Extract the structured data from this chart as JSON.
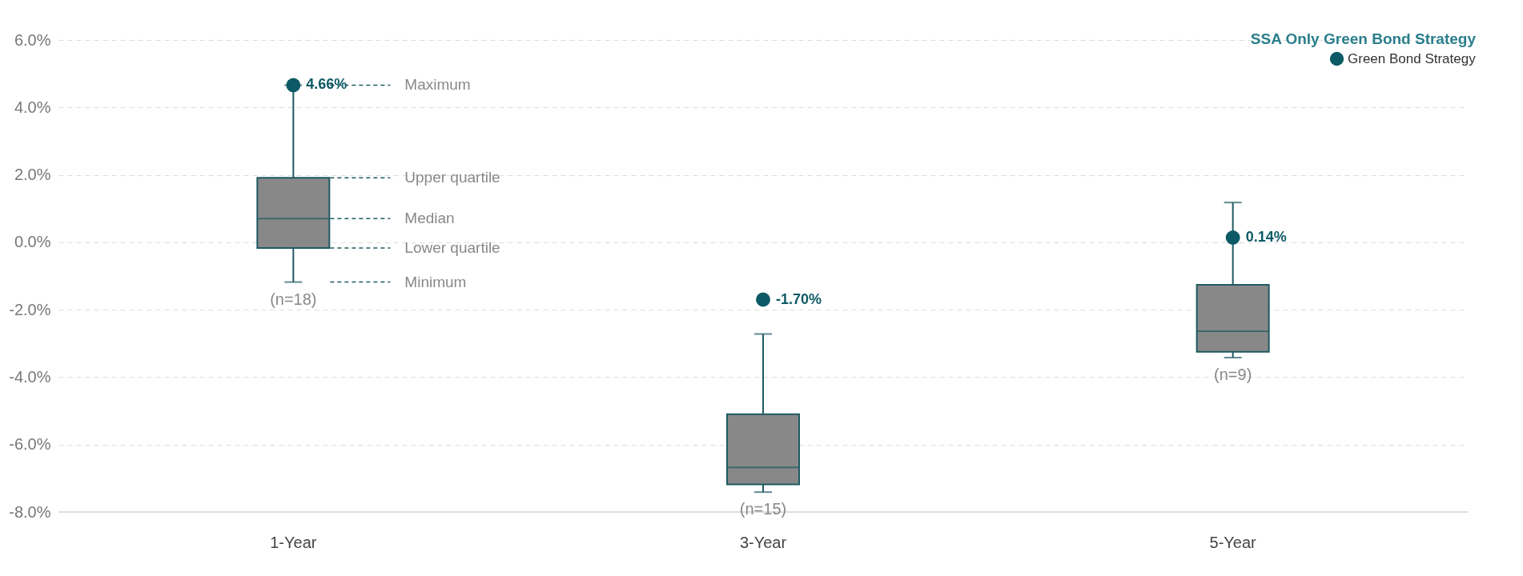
{
  "chart_data": {
    "type": "box",
    "legend_title": "SSA Only Green Bond Strategy",
    "categories": [
      "1-Year",
      "3-Year",
      "5-Year"
    ],
    "ylim": [
      -8,
      6
    ],
    "yticks": [
      {
        "value": -8,
        "label": "-8.0%"
      },
      {
        "value": -6,
        "label": "-6.0%"
      },
      {
        "value": -4,
        "label": "-4.0%"
      },
      {
        "value": -2,
        "label": "-2.0%"
      },
      {
        "value": 0,
        "label": "0.0%"
      },
      {
        "value": 2,
        "label": "2.0%"
      },
      {
        "value": 4,
        "label": "4.0%"
      },
      {
        "value": 6,
        "label": "6.0%"
      }
    ],
    "grid": "y",
    "legend": "top right",
    "series": [
      {
        "type": "box",
        "color": "#888888",
        "boxes": [
          {
            "low": -1.18,
            "q1": -0.17,
            "median": 0.7,
            "q3": 1.91,
            "high": 4.66
          },
          {
            "low": -7.41,
            "q1": -7.18,
            "median": -6.68,
            "q3": -5.1,
            "high": -2.72
          },
          {
            "low": -3.42,
            "q1": -3.25,
            "median": -2.64,
            "q3": -1.26,
            "high": 1.18
          }
        ]
      },
      {
        "type": "scatter",
        "name": "Green Bond Strategy",
        "color": "#0d5a66",
        "marker": "circle",
        "x": [
          "1-Year",
          "3-Year",
          "5-Year"
        ],
        "values": [
          4.66,
          -1.7,
          0.14
        ],
        "value_labels": [
          "4.66%",
          "-1.70%",
          "0.14%"
        ]
      }
    ],
    "annotations": [
      "Maximum",
      "Upper quartile",
      "Median",
      "Lower quartile",
      "Minimum",
      "(n=18)",
      "(n=15)",
      "(n=9)"
    ]
  }
}
